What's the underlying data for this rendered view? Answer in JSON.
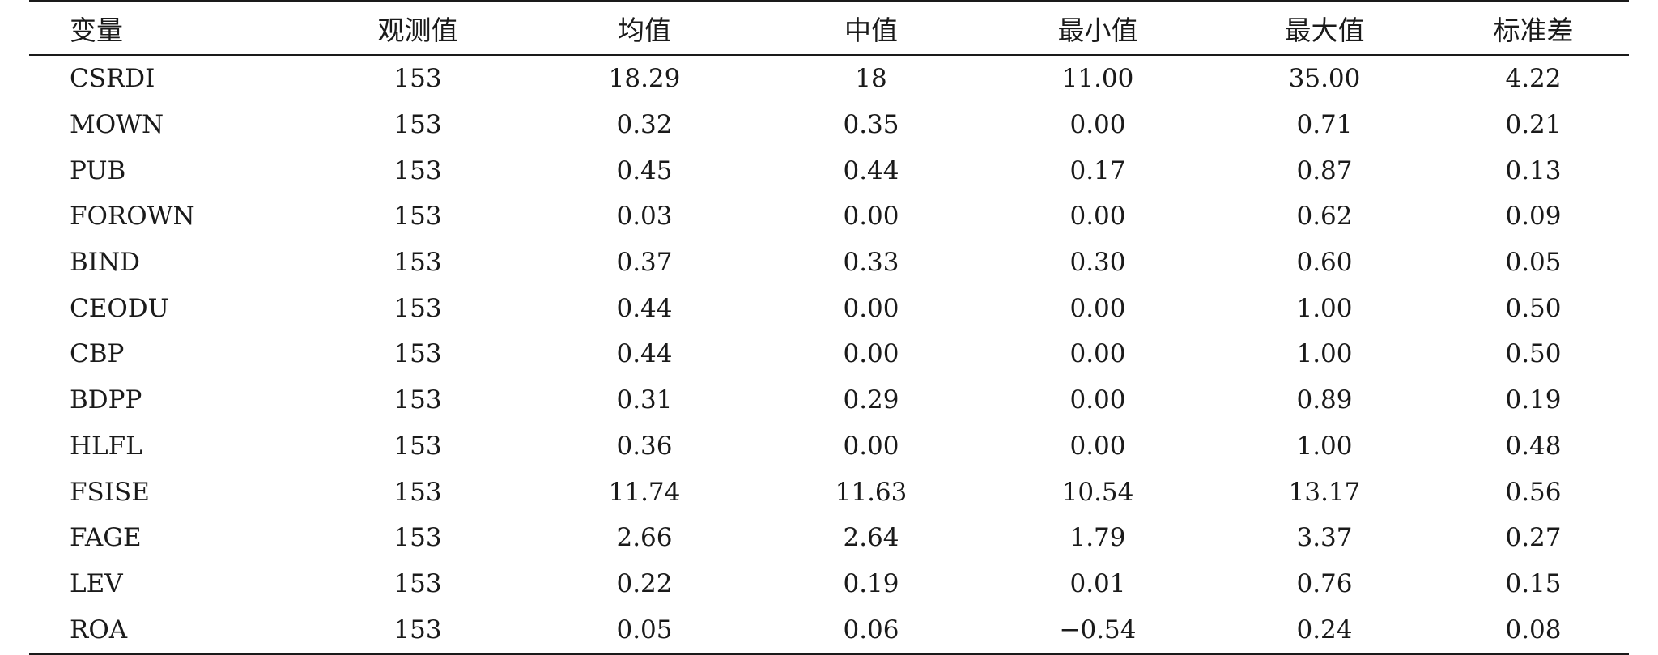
{
  "table": {
    "headers": [
      "变量",
      "观测值",
      "均值",
      "中值",
      "最小值",
      "最大值",
      "标准差"
    ],
    "rows": [
      [
        "CSRDI",
        "153",
        "18.29",
        "18",
        "11.00",
        "35.00",
        "4.22"
      ],
      [
        "MOWN",
        "153",
        "0.32",
        "0.35",
        "0.00",
        "0.71",
        "0.21"
      ],
      [
        "PUB",
        "153",
        "0.45",
        "0.44",
        "0.17",
        "0.87",
        "0.13"
      ],
      [
        "FOROWN",
        "153",
        "0.03",
        "0.00",
        "0.00",
        "0.62",
        "0.09"
      ],
      [
        "BIND",
        "153",
        "0.37",
        "0.33",
        "0.30",
        "0.60",
        "0.05"
      ],
      [
        "CEODU",
        "153",
        "0.44",
        "0.00",
        "0.00",
        "1.00",
        "0.50"
      ],
      [
        "CBP",
        "153",
        "0.44",
        "0.00",
        "0.00",
        "1.00",
        "0.50"
      ],
      [
        "BDPP",
        "153",
        "0.31",
        "0.29",
        "0.00",
        "0.89",
        "0.19"
      ],
      [
        "HLFL",
        "153",
        "0.36",
        "0.00",
        "0.00",
        "1.00",
        "0.48"
      ],
      [
        "FSISE",
        "153",
        "11.74",
        "11.63",
        "10.54",
        "13.17",
        "0.56"
      ],
      [
        "FAGE",
        "153",
        "2.66",
        "2.64",
        "1.79",
        "3.37",
        "0.27"
      ],
      [
        "LEV",
        "153",
        "0.22",
        "0.19",
        "0.01",
        "0.76",
        "0.15"
      ],
      [
        "ROA",
        "153",
        "0.05",
        "0.06",
        "−0.54",
        "0.24",
        "0.08"
      ]
    ]
  }
}
